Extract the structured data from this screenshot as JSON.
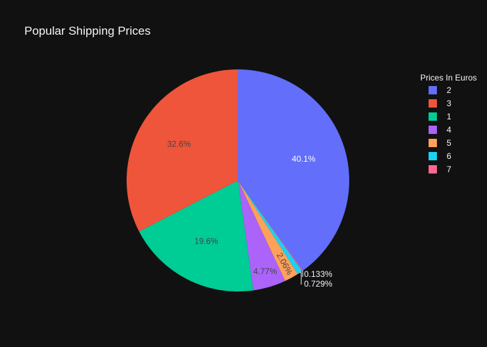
{
  "chart_data": {
    "type": "pie",
    "title": "Popular Shipping Prices",
    "legend": {
      "title": "Prices In Euros",
      "placement": "top-right"
    },
    "slices": [
      {
        "label": "2",
        "percent": 40.1,
        "percent_text": "40.1%",
        "color": "#636efa",
        "text_color": "#ffffff",
        "label_position": "inside"
      },
      {
        "label": "7",
        "percent": 0.133,
        "percent_text": "0.133%",
        "color": "#ff6692",
        "text_color": "#f2f5fa",
        "label_position": "outside"
      },
      {
        "label": "6",
        "percent": 0.729,
        "percent_text": "0.729%",
        "color": "#19d3f3",
        "text_color": "#f2f5fa",
        "label_position": "outside"
      },
      {
        "label": "5",
        "percent": 2.06,
        "percent_text": "2.06%",
        "color": "#ffa15a",
        "text_color": "#444444",
        "label_position": "inside-rotated"
      },
      {
        "label": "4",
        "percent": 4.77,
        "percent_text": "4.77%",
        "color": "#ab63fa",
        "text_color": "#444444",
        "label_position": "inside"
      },
      {
        "label": "1",
        "percent": 19.6,
        "percent_text": "19.6%",
        "color": "#00cc96",
        "text_color": "#444444",
        "label_position": "inside"
      },
      {
        "label": "3",
        "percent": 32.6,
        "percent_text": "32.6%",
        "color": "#ef553b",
        "text_color": "#444444",
        "label_position": "inside"
      }
    ],
    "legend_order": [
      "2",
      "3",
      "1",
      "4",
      "5",
      "6",
      "7"
    ]
  }
}
